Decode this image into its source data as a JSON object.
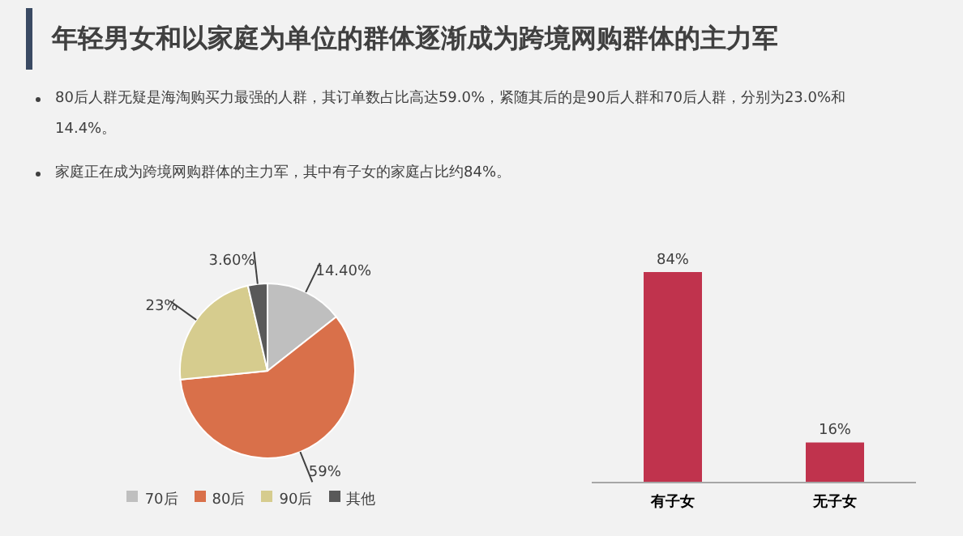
{
  "chart_data": [
    {
      "type": "pie",
      "title": "年轻男女和以家庭为单位的群体逐渐成为跨境网购群体的主力军",
      "annotations": [
        "80后人群无疑是海淘购买力最强的人群，其订单数占比高达59.0%，紧随其后的是90后人群和70后人群，分别为23.0%和14.4%。",
        "家庭正在成为跨境网购群体的主力军，其中有子女的家庭占比约84%。"
      ],
      "categories": [
        "70后",
        "80后",
        "90后",
        "其他"
      ],
      "values": [
        14.4,
        59,
        23,
        3.6
      ],
      "value_labels": [
        "14.40%",
        "59%",
        "23%",
        "3.60%"
      ],
      "colors": [
        "#bfbfbf",
        "#d9704a",
        "#d6cc8e",
        "#595959"
      ],
      "legend": "bottom"
    },
    {
      "type": "bar",
      "categories": [
        "有子女",
        "无子女"
      ],
      "values": [
        84,
        16
      ],
      "value_labels": [
        "84%",
        "16%"
      ],
      "color": "#c0334d"
    }
  ]
}
